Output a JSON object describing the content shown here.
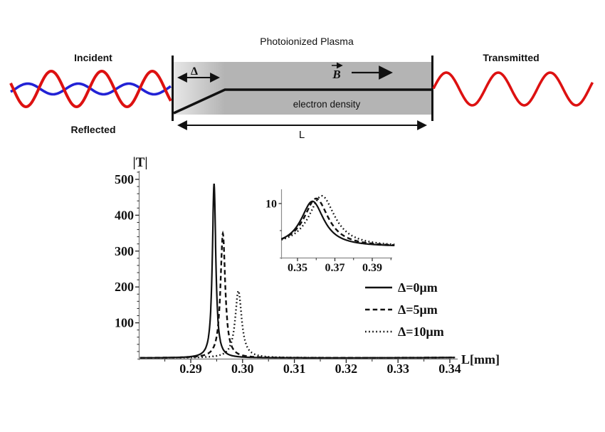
{
  "diagram": {
    "title": "Photoionized Plasma",
    "incident_label": "Incident",
    "reflected_label": "Reflected",
    "transmitted_label": "Transmitted",
    "delta_label": "Δ",
    "b_field_label": "B",
    "electron_density_label": "electron density",
    "length_label": "L",
    "colors": {
      "incident": "#2222d5",
      "reflected": "#dd1111",
      "transmitted": "#dd1111",
      "plasma_gray": "#b4b4b4",
      "plasma_light": "#e7e7e7",
      "line": "#111111"
    }
  },
  "chart_data": {
    "type": "line",
    "title": "",
    "xlabel": "L[mm]",
    "ylabel": "|T|",
    "legend_position": "right",
    "grid": false,
    "main_axes": {
      "xlim": [
        0.28,
        0.341
      ],
      "ylim": [
        0,
        525
      ],
      "xticks": [
        {
          "v": 0.29,
          "label": "0.29"
        },
        {
          "v": 0.3,
          "label": "0.30"
        },
        {
          "v": 0.31,
          "label": "0.31"
        },
        {
          "v": 0.32,
          "label": "0.32"
        },
        {
          "v": 0.33,
          "label": "0.33"
        },
        {
          "v": 0.34,
          "label": "0.34"
        }
      ],
      "x_minor": [
        0.285,
        0.295,
        0.305,
        0.315,
        0.325,
        0.335
      ],
      "yticks": [
        {
          "v": 100,
          "label": "100"
        },
        {
          "v": 200,
          "label": "200"
        },
        {
          "v": 300,
          "label": "300"
        },
        {
          "v": 400,
          "label": "400"
        },
        {
          "v": 500,
          "label": "500"
        }
      ],
      "y_minor_step": 20
    },
    "series": [
      {
        "name": "Δ=0μm",
        "style": "solid",
        "baseline": 2,
        "peaks": [
          {
            "L0": 0.2945,
            "T": 485,
            "fwhm": 0.0008
          },
          {
            "L0": 0.358,
            "T": 8.4,
            "fwhm": 0.015
          }
        ]
      },
      {
        "name": "Δ=5μm",
        "style": "dashed",
        "baseline": 2,
        "peaks": [
          {
            "L0": 0.2962,
            "T": 347,
            "fwhm": 0.0011
          },
          {
            "L0": 0.36,
            "T": 8.9,
            "fwhm": 0.016
          }
        ]
      },
      {
        "name": "Δ=10μm",
        "style": "dotted",
        "baseline": 2,
        "peaks": [
          {
            "L0": 0.2992,
            "T": 187,
            "fwhm": 0.0015
          },
          {
            "L0": 0.363,
            "T": 9.4,
            "fwhm": 0.017
          }
        ]
      }
    ],
    "inset_axes": {
      "xlim": [
        0.341,
        0.401
      ],
      "ylim": [
        0,
        12.4
      ],
      "xticks": [
        {
          "v": 0.35,
          "label": "0.35"
        },
        {
          "v": 0.37,
          "label": "0.37"
        },
        {
          "v": 0.39,
          "label": "0.39"
        }
      ],
      "x_minor": [
        0.36,
        0.38,
        0.4
      ],
      "yticks": [
        {
          "v": 10,
          "label": "10"
        }
      ],
      "y_minor": [
        5
      ]
    }
  }
}
